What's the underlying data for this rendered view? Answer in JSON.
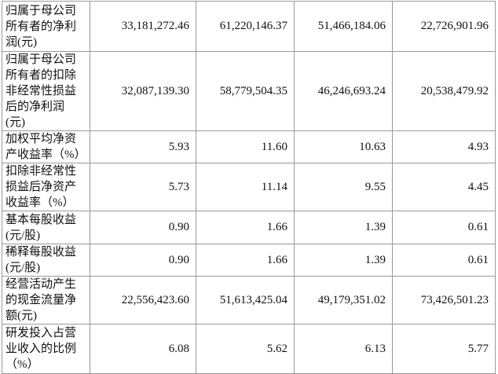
{
  "table": {
    "rows": [
      [
        "归属于母公司所有者的净利润(元)",
        "33,181,272.46",
        "61,220,146.37",
        "51,466,184.06",
        "22,726,901.96"
      ],
      [
        "归属于母公司所有者的扣除非经常性损益后的净利润(元)",
        "32,087,139.30",
        "58,779,504.35",
        "46,246,693.24",
        "20,538,479.92"
      ],
      [
        "加权平均净资产收益率（%）",
        "5.93",
        "11.60",
        "10.63",
        "4.93"
      ],
      [
        "扣除非经常性损益后净资产收益率（%）",
        "5.73",
        "11.14",
        "9.55",
        "4.45"
      ],
      [
        "基本每股收益(元/股)",
        "0.90",
        "1.66",
        "1.39",
        "0.61"
      ],
      [
        "稀释每股收益(元/股)",
        "0.90",
        "1.66",
        "1.39",
        "0.61"
      ],
      [
        "经营活动产生的现金流量净额(元)",
        "22,556,423.60",
        "51,613,425.04",
        "49,179,351.02",
        "73,426,501.23"
      ],
      [
        "研发投入占营业收入的比例（%）",
        "6.08",
        "5.62",
        "6.13",
        "5.77"
      ]
    ]
  }
}
